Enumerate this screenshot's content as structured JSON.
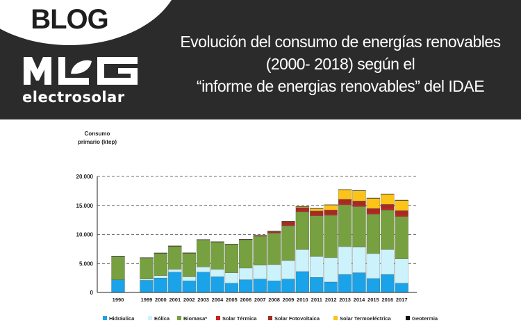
{
  "banner": {
    "blog_label": "BLOG",
    "logo_text": "MLG",
    "logo_subtext": "electrosolar",
    "headline_lines": [
      "Evolución del consumo de energías renovables",
      "(2000- 2018) según el",
      "“informe de energias renovables” del IDAE"
    ]
  },
  "colors": {
    "banner_bg": "#2b2b2b",
    "text_light": "#ffffff"
  },
  "chart_data": {
    "type": "bar",
    "stacked": true,
    "ylabel_lines": [
      "Consumo",
      "primario (ktep)"
    ],
    "ylim": [
      0,
      20000
    ],
    "yticks": [
      0,
      5000,
      10000,
      15000,
      20000
    ],
    "ytick_labels": [
      "0",
      "5.000",
      "10.000",
      "15.000",
      "20.000"
    ],
    "grid": "horizontal dashed",
    "legend_position": "bottom",
    "categories": [
      "1990",
      "1999",
      "2000",
      "2001",
      "2002",
      "2003",
      "2004",
      "2005",
      "2006",
      "2007",
      "2008",
      "2009",
      "2010",
      "2011",
      "2012",
      "2013",
      "2014",
      "2015",
      "2016",
      "2017"
    ],
    "series": [
      {
        "name": "Hidráulica",
        "color": "#1aa3e8",
        "values": [
          2200,
          2100,
          2500,
          3500,
          2000,
          3500,
          2700,
          1600,
          2200,
          2300,
          2000,
          2300,
          3600,
          2600,
          1800,
          3100,
          3400,
          2400,
          3100,
          1600
        ]
      },
      {
        "name": "Eólica",
        "color": "#ccf3fb",
        "values": [
          0,
          200,
          400,
          500,
          700,
          900,
          1300,
          1800,
          2000,
          2400,
          2800,
          3200,
          3800,
          3600,
          4200,
          4800,
          4400,
          4300,
          4300,
          4200
        ]
      },
      {
        "name": "Biomasa*",
        "color": "#77a040",
        "values": [
          4000,
          3700,
          3900,
          4000,
          4100,
          4700,
          4700,
          4900,
          4900,
          5000,
          5400,
          6000,
          6500,
          7000,
          7300,
          7200,
          7000,
          6800,
          6800,
          7300
        ]
      },
      {
        "name": "Solar Térmica",
        "color": "#d01e1e",
        "values": [
          20,
          20,
          25,
          30,
          35,
          40,
          50,
          60,
          80,
          100,
          130,
          160,
          180,
          200,
          220,
          240,
          250,
          260,
          270,
          280
        ]
      },
      {
        "name": "Solar Fotovoltaica",
        "color": "#a52a1f",
        "values": [
          0,
          0,
          0,
          0,
          0,
          0,
          0,
          0,
          10,
          50,
          220,
          530,
          550,
          650,
          700,
          710,
          720,
          720,
          720,
          740
        ]
      },
      {
        "name": "Solar Termoeléctrica",
        "color": "#fcc419",
        "values": [
          0,
          0,
          0,
          0,
          0,
          0,
          0,
          0,
          0,
          0,
          30,
          100,
          200,
          450,
          900,
          1700,
          1800,
          1800,
          1800,
          1800
        ]
      },
      {
        "name": "Geotermia",
        "color": "#111111",
        "values": [
          5,
          5,
          5,
          5,
          5,
          5,
          5,
          5,
          5,
          5,
          5,
          5,
          5,
          5,
          5,
          10,
          10,
          10,
          10,
          10
        ]
      }
    ]
  }
}
